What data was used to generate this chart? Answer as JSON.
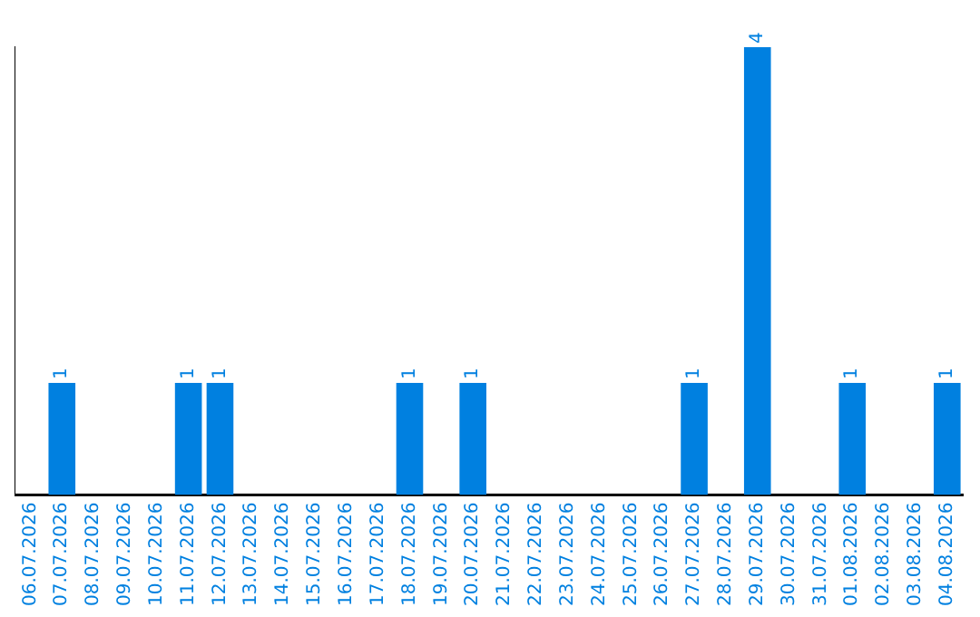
{
  "chart_data": {
    "type": "bar",
    "categories": [
      "06.07.2026",
      "07.07.2026",
      "08.07.2026",
      "09.07.2026",
      "10.07.2026",
      "11.07.2026",
      "12.07.2026",
      "13.07.2026",
      "14.07.2026",
      "15.07.2026",
      "16.07.2026",
      "17.07.2026",
      "18.07.2026",
      "19.07.2026",
      "20.07.2026",
      "21.07.2026",
      "22.07.2026",
      "23.07.2026",
      "24.07.2026",
      "25.07.2026",
      "26.07.2026",
      "27.07.2026",
      "28.07.2026",
      "29.07.2026",
      "30.07.2026",
      "31.07.2026",
      "01.08.2026",
      "02.08.2026",
      "03.08.2026",
      "04.08.2026"
    ],
    "values": [
      0,
      1,
      0,
      0,
      0,
      1,
      1,
      0,
      0,
      0,
      0,
      0,
      1,
      0,
      1,
      0,
      0,
      0,
      0,
      0,
      0,
      1,
      0,
      4,
      0,
      0,
      1,
      0,
      0,
      1
    ],
    "value_labels": [
      null,
      "1",
      null,
      null,
      null,
      "1",
      "1",
      null,
      null,
      null,
      null,
      null,
      "1",
      null,
      "1",
      null,
      null,
      null,
      null,
      null,
      null,
      "1",
      null,
      "4",
      null,
      null,
      "1",
      null,
      null,
      "1"
    ],
    "color": "#0080e0",
    "grid": false,
    "legend": false,
    "tick_labels": "x"
  }
}
